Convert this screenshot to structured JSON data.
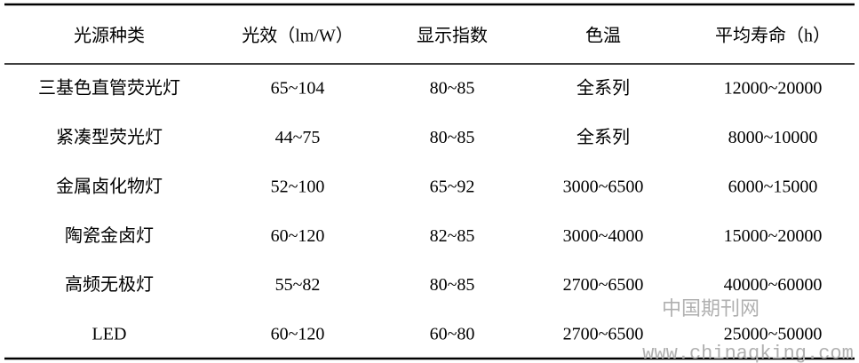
{
  "table": {
    "header": [
      "光源种类",
      "光效（lm/W）",
      "显示指数",
      "色温",
      "平均寿命（h）"
    ],
    "rows": [
      [
        "三基色直管荧光灯",
        "65~104",
        "80~85",
        "全系列",
        "12000~20000"
      ],
      [
        "紧凑型荧光灯",
        "44~75",
        "80~85",
        "全系列",
        "8000~10000"
      ],
      [
        "金属卤化物灯",
        "52~100",
        "65~92",
        "3000~6500",
        "6000~15000"
      ],
      [
        "陶瓷金卤灯",
        "60~120",
        "82~85",
        "3000~4000",
        "15000~20000"
      ],
      [
        "高频无极灯",
        "55~82",
        "80~85",
        "2700~6500",
        "40000~60000"
      ],
      [
        "LED",
        "60~120",
        "60~80",
        "2700~6500",
        "25000~50000"
      ]
    ]
  },
  "watermark": {
    "name": "中国期刊网",
    "url": "www.chinaqking.com"
  }
}
